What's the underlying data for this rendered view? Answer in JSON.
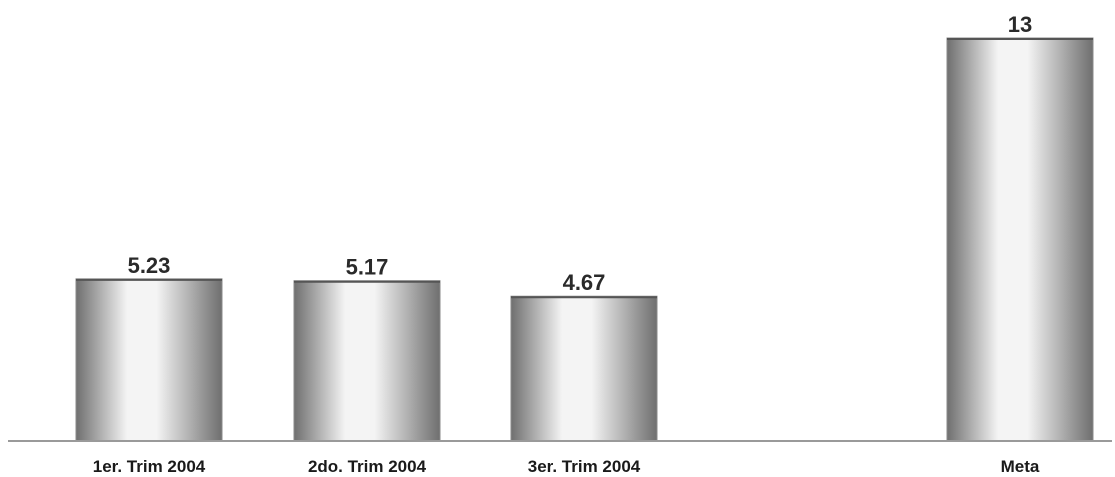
{
  "chart_data": {
    "type": "bar",
    "categories": [
      "1er. Trim 2004",
      "2do. Trim 2004",
      "3er. Trim 2004",
      "Meta"
    ],
    "values": [
      5.23,
      5.17,
      4.67,
      13
    ],
    "value_labels": [
      "5.23",
      "5.17",
      "4.67",
      "13"
    ],
    "title": "",
    "xlabel": "",
    "ylabel": "",
    "ylim": [
      0,
      13
    ],
    "grid": false,
    "legend": "none",
    "colors": {
      "bar_dark": "#6f6f6f",
      "bar_light": "#f4f4f4",
      "baseline": "#9a9a9a",
      "label": "#2a2a2a"
    }
  }
}
